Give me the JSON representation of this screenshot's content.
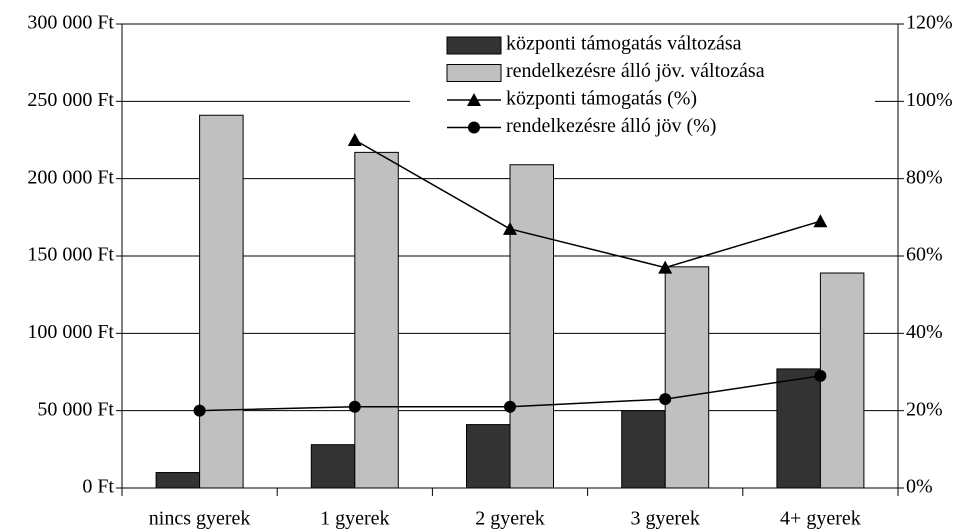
{
  "chart_data": {
    "type": "bar",
    "categories": [
      "nincs gyerek",
      "1 gyerek",
      "2 gyerek",
      "3 gyerek",
      "4+ gyerek"
    ],
    "series": [
      {
        "name": "központi támogatás változása",
        "type": "bar",
        "color": "#333333",
        "values": [
          10000,
          28000,
          41000,
          50000,
          77000
        ]
      },
      {
        "name": "rendelkezésre álló jöv. változása",
        "type": "bar",
        "color": "#c0c0c0",
        "values": [
          241000,
          217000,
          209000,
          143000,
          139000
        ]
      },
      {
        "name": "központi támogatás (%)",
        "type": "line",
        "marker": "triangle",
        "color": "#000000",
        "axis": "y2",
        "values": [
          null,
          90,
          67,
          57,
          69
        ]
      },
      {
        "name": "rendelkezésre álló jöv (%)",
        "type": "line",
        "marker": "circle",
        "color": "#000000",
        "axis": "y2",
        "values": [
          20,
          21,
          21,
          23,
          29
        ]
      }
    ],
    "ylim": [
      0,
      300000
    ],
    "yticks": [
      {
        "value": 0,
        "label": "0 Ft"
      },
      {
        "value": 50000,
        "label": "50 000 Ft"
      },
      {
        "value": 100000,
        "label": "100 000 Ft"
      },
      {
        "value": 150000,
        "label": "150 000 Ft"
      },
      {
        "value": 200000,
        "label": "200 000 Ft"
      },
      {
        "value": 250000,
        "label": "250 000 Ft"
      },
      {
        "value": 300000,
        "label": "300 000 Ft"
      }
    ],
    "y2lim": [
      0,
      120
    ],
    "y2ticks": [
      {
        "value": 0,
        "label": "0%"
      },
      {
        "value": 20,
        "label": "20%"
      },
      {
        "value": 40,
        "label": "40%"
      },
      {
        "value": 60,
        "label": "60%"
      },
      {
        "value": 80,
        "label": "80%"
      },
      {
        "value": 100,
        "label": "100%"
      },
      {
        "value": 120,
        "label": "120%"
      }
    ],
    "grid": true,
    "legend": "upper right"
  }
}
